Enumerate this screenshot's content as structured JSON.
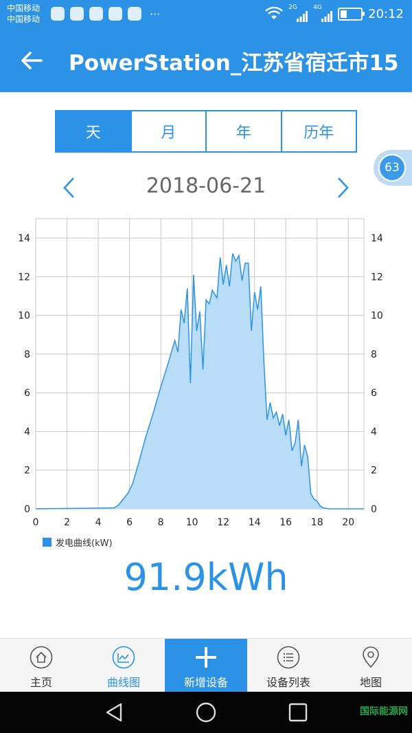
{
  "status_bar": {
    "carrier_1": "中国移动",
    "carrier_2": "中国移动",
    "more": "···",
    "net_1": "2G",
    "net_2": "4G",
    "battery_level": 0.3,
    "time": "20:12"
  },
  "header": {
    "title": "PowerStation_江苏省宿迁市15..."
  },
  "tabs": [
    {
      "label": "天",
      "active": true
    },
    {
      "label": "月",
      "active": false
    },
    {
      "label": "年",
      "active": false
    },
    {
      "label": "历年",
      "active": false
    }
  ],
  "badge": "63",
  "date": "2018-06-21",
  "legend": "发电曲线(kW)",
  "total": "91.9kWh",
  "bottom_nav": [
    {
      "label": "主页",
      "icon": "home-icon"
    },
    {
      "label": "曲线图",
      "icon": "chart-icon"
    },
    {
      "label": "新增设备",
      "icon": "plus-icon"
    },
    {
      "label": "设备列表",
      "icon": "list-icon"
    },
    {
      "label": "地图",
      "icon": "map-pin-icon"
    }
  ],
  "watermark": "国际能源网",
  "colors": {
    "accent": "#2b92e6",
    "area_fill": "#b9dcf7",
    "grid": "#c8c8c8"
  },
  "chart_data": {
    "type": "area",
    "xlabel": "",
    "ylabel": "",
    "xlim": [
      0,
      21
    ],
    "ylim": [
      0,
      15
    ],
    "x_ticks": [
      0,
      2,
      4,
      6,
      8,
      10,
      12,
      14,
      16,
      18,
      20
    ],
    "y_ticks": [
      0,
      2,
      4,
      6,
      8,
      10,
      12,
      14
    ],
    "grid": true,
    "series": [
      {
        "name": "发电曲线(kW)",
        "x": [
          0,
          5.0,
          5.3,
          5.6,
          5.9,
          6.2,
          6.6,
          7.0,
          7.5,
          8.0,
          8.5,
          8.9,
          9.1,
          9.3,
          9.5,
          9.7,
          9.9,
          10.1,
          10.3,
          10.5,
          10.7,
          10.9,
          11.1,
          11.3,
          11.6,
          11.8,
          12.0,
          12.2,
          12.4,
          12.6,
          12.8,
          13.0,
          13.2,
          13.4,
          13.6,
          13.8,
          14.0,
          14.2,
          14.4,
          14.6,
          14.8,
          15.0,
          15.2,
          15.4,
          15.6,
          15.8,
          16.0,
          16.2,
          16.4,
          16.6,
          16.8,
          17.0,
          17.2,
          17.4,
          17.6,
          17.8,
          18.0,
          18.2,
          18.4,
          18.6,
          18.8,
          19.0,
          19.5,
          21.0
        ],
        "y": [
          0,
          0.05,
          0.2,
          0.5,
          0.8,
          1.3,
          2.4,
          3.6,
          4.9,
          6.3,
          7.6,
          8.7,
          8.1,
          10.3,
          9.6,
          11.4,
          6.5,
          12.1,
          9.2,
          10.2,
          7.2,
          10.8,
          10.6,
          11.3,
          10.9,
          13.0,
          11.6,
          12.6,
          11.5,
          13.2,
          12.8,
          13.1,
          11.8,
          12.7,
          12.7,
          9.2,
          11.2,
          10.3,
          11.5,
          7.6,
          4.6,
          5.5,
          4.7,
          5.0,
          4.3,
          4.9,
          3.8,
          4.6,
          3.0,
          3.4,
          4.6,
          2.2,
          3.3,
          2.7,
          0.8,
          0.5,
          0.4,
          0.15,
          0.05,
          0.02,
          0,
          0,
          0,
          0
        ]
      }
    ]
  }
}
